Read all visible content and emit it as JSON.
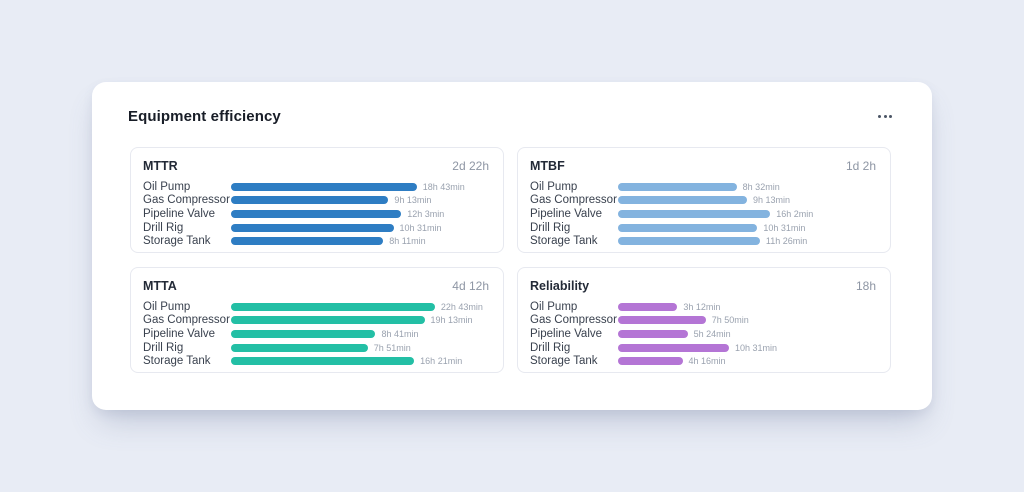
{
  "page": {
    "background": "#e8ecf5"
  },
  "card": {
    "title": "Equipment efficiency",
    "menu": {
      "icon": "ellipsis-horizontal-icon"
    },
    "panels": [
      {
        "key": "mttr",
        "title": "MTTR",
        "summary": "2d 22h",
        "bar_color": "#2e7dc3",
        "rows": [
          {
            "label": "Oil Pump",
            "value": "18h 43min",
            "pct": 72
          },
          {
            "label": "Gas Compressor",
            "value": "9h 13min",
            "pct": 61
          },
          {
            "label": "Pipeline Valve",
            "value": "12h 3min",
            "pct": 66
          },
          {
            "label": "Drill Rig",
            "value": "10h 31min",
            "pct": 63
          },
          {
            "label": "Storage Tank",
            "value": "8h 11min",
            "pct": 59
          }
        ]
      },
      {
        "key": "mtbf",
        "title": "MTBF",
        "summary": "1d 2h",
        "bar_color": "#83b3df",
        "rows": [
          {
            "label": "Oil Pump",
            "value": "8h 32min",
            "pct": 46
          },
          {
            "label": "Gas Compressor",
            "value": "9h 13min",
            "pct": 50
          },
          {
            "label": "Pipeline Valve",
            "value": "16h 2min",
            "pct": 59
          },
          {
            "label": "Drill Rig",
            "value": "10h 31min",
            "pct": 54
          },
          {
            "label": "Storage Tank",
            "value": "11h 26min",
            "pct": 55
          }
        ]
      },
      {
        "key": "mtta",
        "title": "MTTA",
        "summary": "4d 12h",
        "bar_color": "#23bfa5",
        "rows": [
          {
            "label": "Oil Pump",
            "value": "22h 43min",
            "pct": 79
          },
          {
            "label": "Gas Compressor",
            "value": "19h 13min",
            "pct": 75
          },
          {
            "label": "Pipeline Valve",
            "value": "8h 41min",
            "pct": 56
          },
          {
            "label": "Drill Rig",
            "value": "7h 51min",
            "pct": 53
          },
          {
            "label": "Storage Tank",
            "value": "16h 21min",
            "pct": 71
          }
        ]
      },
      {
        "key": "reliability",
        "title": "Reliability",
        "summary": "18h",
        "bar_color": "#b475d5",
        "rows": [
          {
            "label": "Oil Pump",
            "value": "3h 12min",
            "pct": 23
          },
          {
            "label": "Gas Compressor",
            "value": "7h 50min",
            "pct": 34
          },
          {
            "label": "Pipeline Valve",
            "value": "5h 24min",
            "pct": 27
          },
          {
            "label": "Drill Rig",
            "value": "10h 31min",
            "pct": 43
          },
          {
            "label": "Storage Tank",
            "value": "4h 16min",
            "pct": 25
          }
        ]
      }
    ]
  },
  "chart_data": [
    {
      "type": "bar",
      "orientation": "horizontal",
      "title": "MTTR",
      "summary_value": "2d 22h",
      "categories": [
        "Oil Pump",
        "Gas Compressor",
        "Pipeline Valve",
        "Drill Rig",
        "Storage Tank"
      ],
      "value_labels": [
        "18h 43min",
        "9h 13min",
        "12h 3min",
        "10h 31min",
        "8h 11min"
      ],
      "values_hours": [
        18.72,
        9.22,
        12.05,
        10.52,
        8.18
      ],
      "bar_color": "#2e7dc3",
      "grid": false,
      "legend": false
    },
    {
      "type": "bar",
      "orientation": "horizontal",
      "title": "MTBF",
      "summary_value": "1d 2h",
      "categories": [
        "Oil Pump",
        "Gas Compressor",
        "Pipeline Valve",
        "Drill Rig",
        "Storage Tank"
      ],
      "value_labels": [
        "8h 32min",
        "9h 13min",
        "16h 2min",
        "10h 31min",
        "11h 26min"
      ],
      "values_hours": [
        8.53,
        9.22,
        16.03,
        10.52,
        11.43
      ],
      "bar_color": "#83b3df",
      "grid": false,
      "legend": false
    },
    {
      "type": "bar",
      "orientation": "horizontal",
      "title": "MTTA",
      "summary_value": "4d 12h",
      "categories": [
        "Oil Pump",
        "Gas Compressor",
        "Pipeline Valve",
        "Drill Rig",
        "Storage Tank"
      ],
      "value_labels": [
        "22h 43min",
        "19h 13min",
        "8h 41min",
        "7h 51min",
        "16h 21min"
      ],
      "values_hours": [
        22.72,
        19.22,
        8.68,
        7.85,
        16.35
      ],
      "bar_color": "#23bfa5",
      "grid": false,
      "legend": false
    },
    {
      "type": "bar",
      "orientation": "horizontal",
      "title": "Reliability",
      "summary_value": "18h",
      "categories": [
        "Oil Pump",
        "Gas Compressor",
        "Pipeline Valve",
        "Drill Rig",
        "Storage Tank"
      ],
      "value_labels": [
        "3h 12min",
        "7h 50min",
        "5h 24min",
        "10h 31min",
        "4h 16min"
      ],
      "values_hours": [
        3.2,
        7.83,
        5.4,
        10.52,
        4.27
      ],
      "bar_color": "#b475d5",
      "grid": false,
      "legend": false
    }
  ]
}
